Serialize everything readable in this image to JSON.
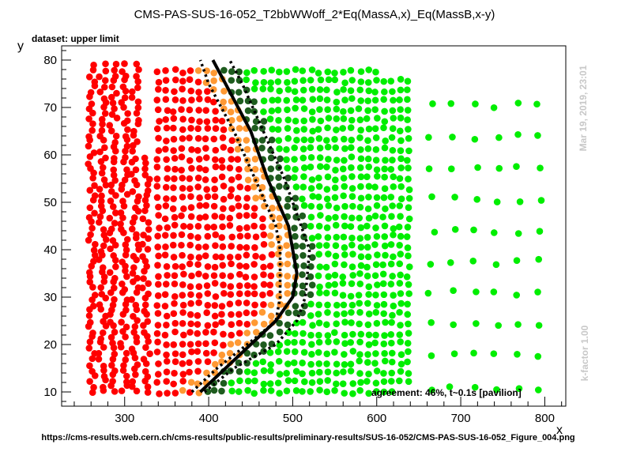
{
  "page": {
    "title": "CMS-PAS-SUS-16-052_T2bbWWoff_2*Eq(MassA,x)_Eq(MassB,x-y)",
    "dataset_label": "dataset: upper limit",
    "agreement_text": "agreement: 46%, t~0.1s [pavilion]",
    "footer_url": "https://cms-results.web.cern.ch/cms-results/public-results/preliminary-results/SUS-16-052/CMS-PAS-SUS-16-052_Figure_004.png",
    "date_stamp": "Mar 19, 2019, 23:01",
    "k_factor": "k-factor 1.00"
  },
  "chart_data": {
    "type": "scatter",
    "title": "CMS-PAS-SUS-16-052_T2bbWWoff_2*Eq(MassA,x)_Eq(MassB,x-y)",
    "xlabel": "x",
    "ylabel": "y",
    "xlim": [
      225,
      825
    ],
    "ylim": [
      7,
      83
    ],
    "x_ticks": [
      300,
      400,
      500,
      600,
      700,
      800
    ],
    "y_ticks": [
      10,
      20,
      30,
      40,
      50,
      60,
      70,
      80
    ],
    "grid": false,
    "colors": {
      "excluded": "#ff0000",
      "borderline_excluded": "#ff9933",
      "borderline_allowed": "#1e5c1e",
      "allowed": "#00ee00",
      "curves": "#000000"
    },
    "series": [
      {
        "category": "excluded",
        "x_range": [
          255,
          410
        ],
        "y_range": [
          10,
          80
        ],
        "points_sample": [
          [
            258,
            10
          ],
          [
            290,
            80
          ],
          [
            340,
            80
          ],
          [
            400,
            80
          ],
          [
            300,
            50
          ],
          [
            360,
            30
          ]
        ]
      },
      {
        "category": "borderline_excluded",
        "points_sample": [
          [
            370,
            80
          ],
          [
            380,
            70
          ],
          [
            395,
            60
          ],
          [
            415,
            50
          ],
          [
            440,
            40
          ],
          [
            460,
            30
          ],
          [
            440,
            20
          ],
          [
            420,
            14
          ]
        ]
      },
      {
        "category": "borderline_allowed",
        "points_sample": [
          [
            415,
            80
          ],
          [
            420,
            70
          ],
          [
            440,
            60
          ],
          [
            460,
            50
          ],
          [
            480,
            40
          ],
          [
            490,
            30
          ],
          [
            460,
            20
          ],
          [
            420,
            14
          ]
        ]
      },
      {
        "category": "allowed",
        "x_range": [
          400,
          800
        ],
        "y_range": [
          10,
          80
        ],
        "points_sample": [
          [
            500,
            80
          ],
          [
            600,
            80
          ],
          [
            690,
            76
          ],
          [
            790,
            75
          ],
          [
            760,
            10
          ],
          [
            640,
            40
          ]
        ]
      }
    ],
    "curves": [
      {
        "style": "solid",
        "points": [
          [
            390,
            10
          ],
          [
            420,
            15
          ],
          [
            480,
            25
          ],
          [
            500,
            30
          ],
          [
            505,
            35
          ],
          [
            495,
            45
          ],
          [
            470,
            55
          ],
          [
            450,
            65
          ],
          [
            420,
            75
          ],
          [
            405,
            80
          ]
        ]
      },
      {
        "style": "dotted",
        "points": [
          [
            380,
            10
          ],
          [
            410,
            15
          ],
          [
            460,
            22
          ],
          [
            480,
            25
          ],
          [
            485,
            30
          ],
          [
            485,
            40
          ],
          [
            480,
            45
          ],
          [
            455,
            55
          ],
          [
            430,
            65
          ],
          [
            400,
            75
          ],
          [
            390,
            80
          ]
        ]
      },
      {
        "style": "dotted",
        "points": [
          [
            395,
            10
          ],
          [
            430,
            15
          ],
          [
            480,
            20
          ],
          [
            505,
            25
          ],
          [
            515,
            30
          ],
          [
            520,
            40
          ],
          [
            510,
            45
          ],
          [
            490,
            55
          ],
          [
            465,
            65
          ],
          [
            440,
            75
          ],
          [
            425,
            80
          ]
        ]
      }
    ]
  }
}
